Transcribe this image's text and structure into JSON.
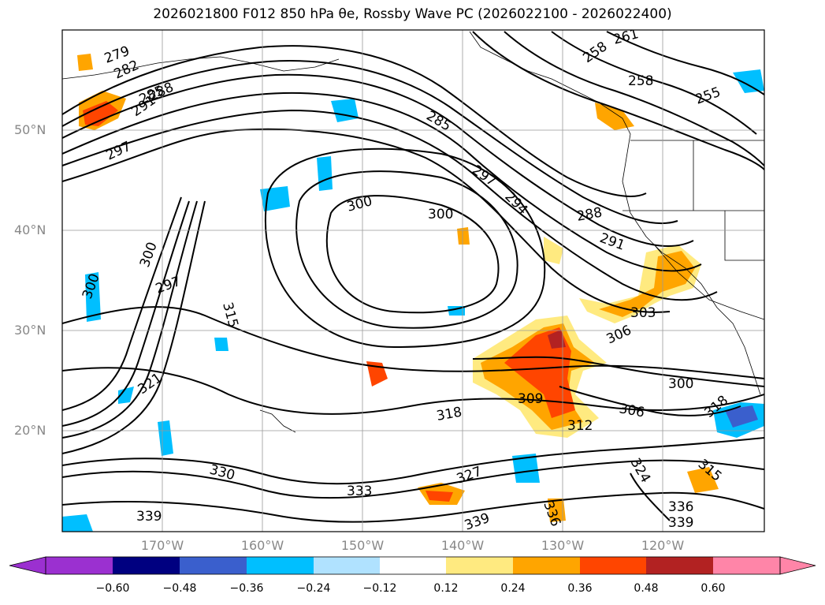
{
  "title": "2026021800 F012 850 hPa θe, Rossby Wave PC (2026022100 - 2026022400)",
  "lat_labels": [
    "50°N",
    "40°N",
    "30°N",
    "20°N"
  ],
  "lon_labels": [
    "170°W",
    "160°W",
    "150°W",
    "140°W",
    "130°W",
    "120°W"
  ],
  "contour_labels": [
    "279",
    "282",
    "285",
    "288",
    "291",
    "297",
    "261",
    "258",
    "258",
    "255",
    "285",
    "297",
    "294",
    "300",
    "300",
    "288",
    "291",
    "300",
    "297",
    "315",
    "300",
    "303",
    "306",
    "321",
    "309",
    "306",
    "300",
    "318",
    "312",
    "318",
    "330",
    "327",
    "333",
    "324",
    "315",
    "339",
    "339",
    "336",
    "336",
    "339"
  ],
  "colorbar": {
    "ticks": [
      "−0.60",
      "−0.48",
      "−0.36",
      "−0.24",
      "−0.12",
      "0.12",
      "0.24",
      "0.36",
      "0.48",
      "0.60"
    ],
    "colors": [
      "#9b30d0",
      "#000080",
      "#3a5fcd",
      "#00bfff",
      "#b0e2ff",
      "#ffffff",
      "#ffea80",
      "#ffa500",
      "#ff4500",
      "#b22222",
      "#ff85a8"
    ]
  }
}
